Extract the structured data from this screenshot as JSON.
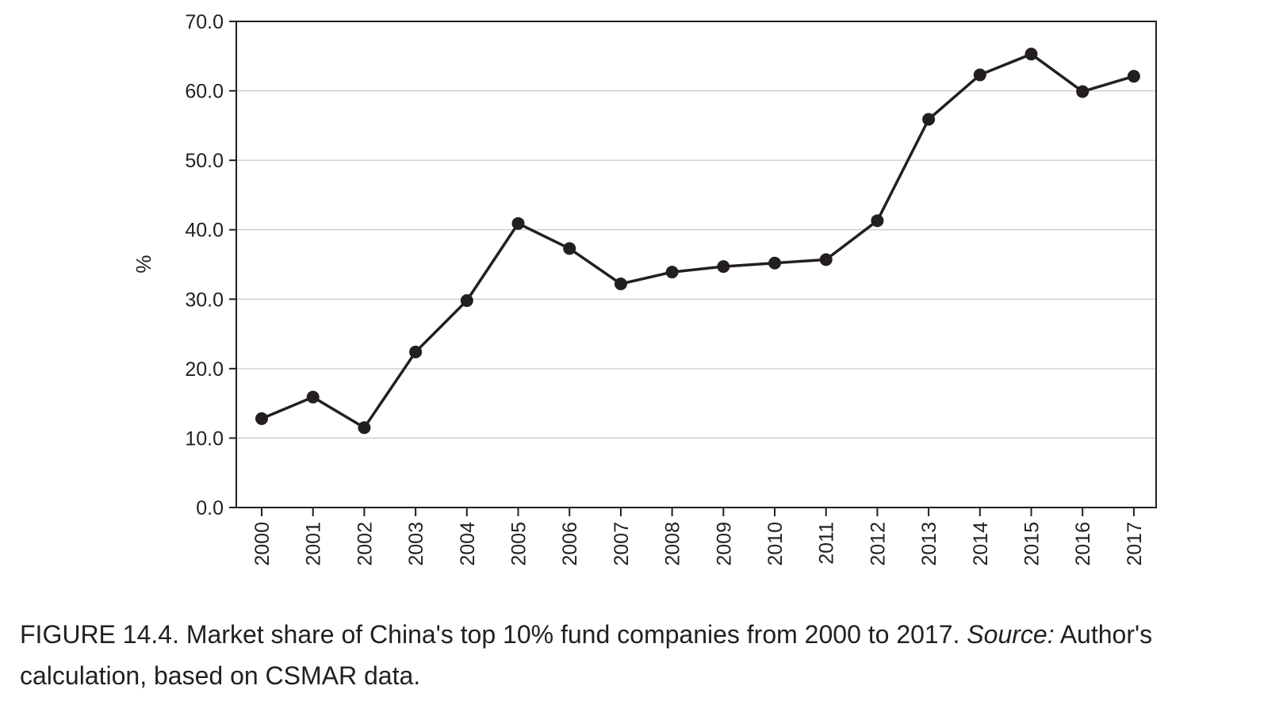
{
  "chart_data": {
    "type": "line",
    "x": [
      "2000",
      "2001",
      "2002",
      "2003",
      "2004",
      "2005",
      "2006",
      "2007",
      "2008",
      "2009",
      "2010",
      "2011",
      "2012",
      "2013",
      "2014",
      "2015",
      "2016",
      "2017"
    ],
    "series": [
      {
        "values": [
          12.8,
          15.9,
          11.5,
          22.4,
          29.8,
          40.9,
          37.3,
          32.2,
          33.9,
          34.7,
          35.2,
          35.7,
          41.3,
          55.9,
          62.3,
          65.3,
          59.9,
          62.1
        ]
      }
    ],
    "ylabel": "%",
    "ylim": [
      0,
      70
    ],
    "yticks": [
      "0.0",
      "10.0",
      "20.0",
      "30.0",
      "40.0",
      "50.0",
      "60.0",
      "70.0"
    ],
    "grid": true,
    "line_color": "#231f20",
    "grid_color": "#c8c8c8"
  },
  "caption": {
    "lead": "FIGURE 14.4. Market share of China's top 10% fund companies from 2000 to 2017. ",
    "source_label": "Source:",
    "tail": " Author's calculation, based on CSMAR data."
  }
}
